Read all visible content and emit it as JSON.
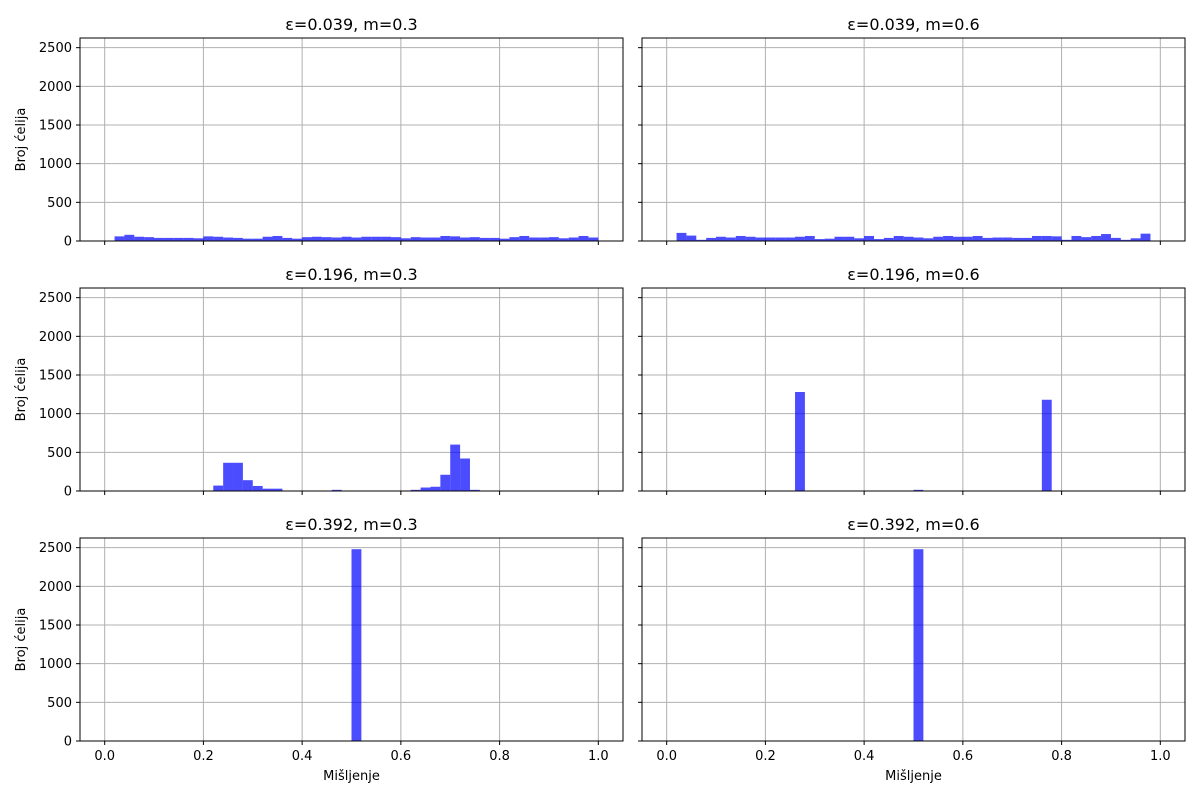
{
  "chart_data": [
    {
      "type": "bar",
      "title": "ε=0.039, m=0.3",
      "xlabel": "",
      "ylabel": "Broj ćelija",
      "xlim": [
        -0.05,
        1.05
      ],
      "ylim": [
        0,
        2625
      ],
      "grid": true,
      "bar_color": "#0000ff",
      "bar_alpha": 0.7,
      "x_ticks": [],
      "y_ticks": [
        "0",
        "500",
        "1000",
        "1500",
        "2000",
        "2500"
      ],
      "bin_width": 0.02,
      "x": [
        0.01,
        0.03,
        0.05,
        0.07,
        0.09,
        0.11,
        0.13,
        0.15,
        0.17,
        0.19,
        0.21,
        0.23,
        0.25,
        0.27,
        0.29,
        0.31,
        0.33,
        0.35,
        0.37,
        0.39,
        0.41,
        0.43,
        0.45,
        0.47,
        0.49,
        0.51,
        0.53,
        0.55,
        0.57,
        0.59,
        0.61,
        0.63,
        0.65,
        0.67,
        0.69,
        0.71,
        0.73,
        0.75,
        0.77,
        0.79,
        0.81,
        0.83,
        0.85,
        0.87,
        0.89,
        0.91,
        0.93,
        0.95,
        0.97,
        0.99
      ],
      "values": [
        0,
        60,
        80,
        55,
        50,
        40,
        40,
        40,
        40,
        35,
        60,
        55,
        45,
        40,
        30,
        30,
        55,
        65,
        40,
        30,
        50,
        55,
        50,
        45,
        55,
        45,
        55,
        55,
        55,
        50,
        35,
        50,
        45,
        45,
        65,
        60,
        45,
        50,
        40,
        40,
        30,
        50,
        65,
        45,
        45,
        50,
        35,
        45,
        65,
        45
      ]
    },
    {
      "type": "bar",
      "title": "ε=0.039, m=0.6",
      "xlabel": "",
      "ylabel": "",
      "xlim": [
        -0.05,
        1.05
      ],
      "ylim": [
        0,
        2625
      ],
      "grid": true,
      "bar_color": "#0000ff",
      "bar_alpha": 0.7,
      "x_ticks": [],
      "y_ticks": [],
      "bin_width": 0.02,
      "x": [
        0.01,
        0.03,
        0.05,
        0.07,
        0.09,
        0.11,
        0.13,
        0.15,
        0.17,
        0.19,
        0.21,
        0.23,
        0.25,
        0.27,
        0.29,
        0.31,
        0.33,
        0.35,
        0.37,
        0.39,
        0.41,
        0.43,
        0.45,
        0.47,
        0.49,
        0.51,
        0.53,
        0.55,
        0.57,
        0.59,
        0.61,
        0.63,
        0.65,
        0.67,
        0.69,
        0.71,
        0.73,
        0.75,
        0.77,
        0.79,
        0.81,
        0.83,
        0.85,
        0.87,
        0.89,
        0.91,
        0.93,
        0.95,
        0.97,
        0.99
      ],
      "values": [
        0,
        105,
        70,
        15,
        40,
        55,
        45,
        65,
        55,
        45,
        45,
        45,
        45,
        55,
        65,
        25,
        30,
        55,
        55,
        35,
        65,
        25,
        40,
        65,
        55,
        45,
        35,
        55,
        65,
        55,
        55,
        65,
        40,
        45,
        45,
        40,
        40,
        65,
        65,
        60,
        15,
        65,
        50,
        65,
        90,
        40,
        15,
        35,
        95,
        0
      ]
    },
    {
      "type": "bar",
      "title": "ε=0.196, m=0.3",
      "xlabel": "",
      "ylabel": "Broj ćelija",
      "xlim": [
        -0.05,
        1.05
      ],
      "ylim": [
        0,
        2625
      ],
      "grid": true,
      "bar_color": "#0000ff",
      "bar_alpha": 0.7,
      "x_ticks": [],
      "y_ticks": [
        "0",
        "500",
        "1000",
        "1500",
        "2000",
        "2500"
      ],
      "bin_width": 0.02,
      "x": [
        0.23,
        0.25,
        0.27,
        0.29,
        0.31,
        0.33,
        0.35,
        0.47,
        0.63,
        0.65,
        0.67,
        0.69,
        0.71,
        0.73,
        0.75
      ],
      "values": [
        70,
        365,
        365,
        140,
        65,
        30,
        30,
        15,
        15,
        45,
        55,
        210,
        600,
        420,
        15
      ]
    },
    {
      "type": "bar",
      "title": "ε=0.196, m=0.6",
      "xlabel": "",
      "ylabel": "",
      "xlim": [
        -0.05,
        1.05
      ],
      "ylim": [
        0,
        2625
      ],
      "grid": true,
      "bar_color": "#0000ff",
      "bar_alpha": 0.7,
      "x_ticks": [],
      "y_ticks": [],
      "bin_width": 0.02,
      "x": [
        0.27,
        0.51,
        0.77
      ],
      "values": [
        1280,
        15,
        1180
      ]
    },
    {
      "type": "bar",
      "title": "ε=0.392, m=0.3",
      "xlabel": "Mišljenje",
      "ylabel": "Broj ćelija",
      "xlim": [
        -0.05,
        1.05
      ],
      "ylim": [
        0,
        2625
      ],
      "grid": true,
      "bar_color": "#0000ff",
      "bar_alpha": 0.7,
      "x_ticks": [
        "0.0",
        "0.2",
        "0.4",
        "0.6",
        "0.8",
        "1.0"
      ],
      "y_ticks": [
        "0",
        "500",
        "1000",
        "1500",
        "2000",
        "2500"
      ],
      "bin_width": 0.02,
      "x": [
        0.51
      ],
      "values": [
        2480
      ]
    },
    {
      "type": "bar",
      "title": "ε=0.392, m=0.6",
      "xlabel": "Mišljenje",
      "ylabel": "",
      "xlim": [
        -0.05,
        1.05
      ],
      "ylim": [
        0,
        2625
      ],
      "grid": true,
      "bar_color": "#0000ff",
      "bar_alpha": 0.7,
      "x_ticks": [
        "0.0",
        "0.2",
        "0.4",
        "0.6",
        "0.8",
        "1.0"
      ],
      "y_ticks": [],
      "bin_width": 0.02,
      "x": [
        0.51
      ],
      "values": [
        2480
      ]
    }
  ]
}
